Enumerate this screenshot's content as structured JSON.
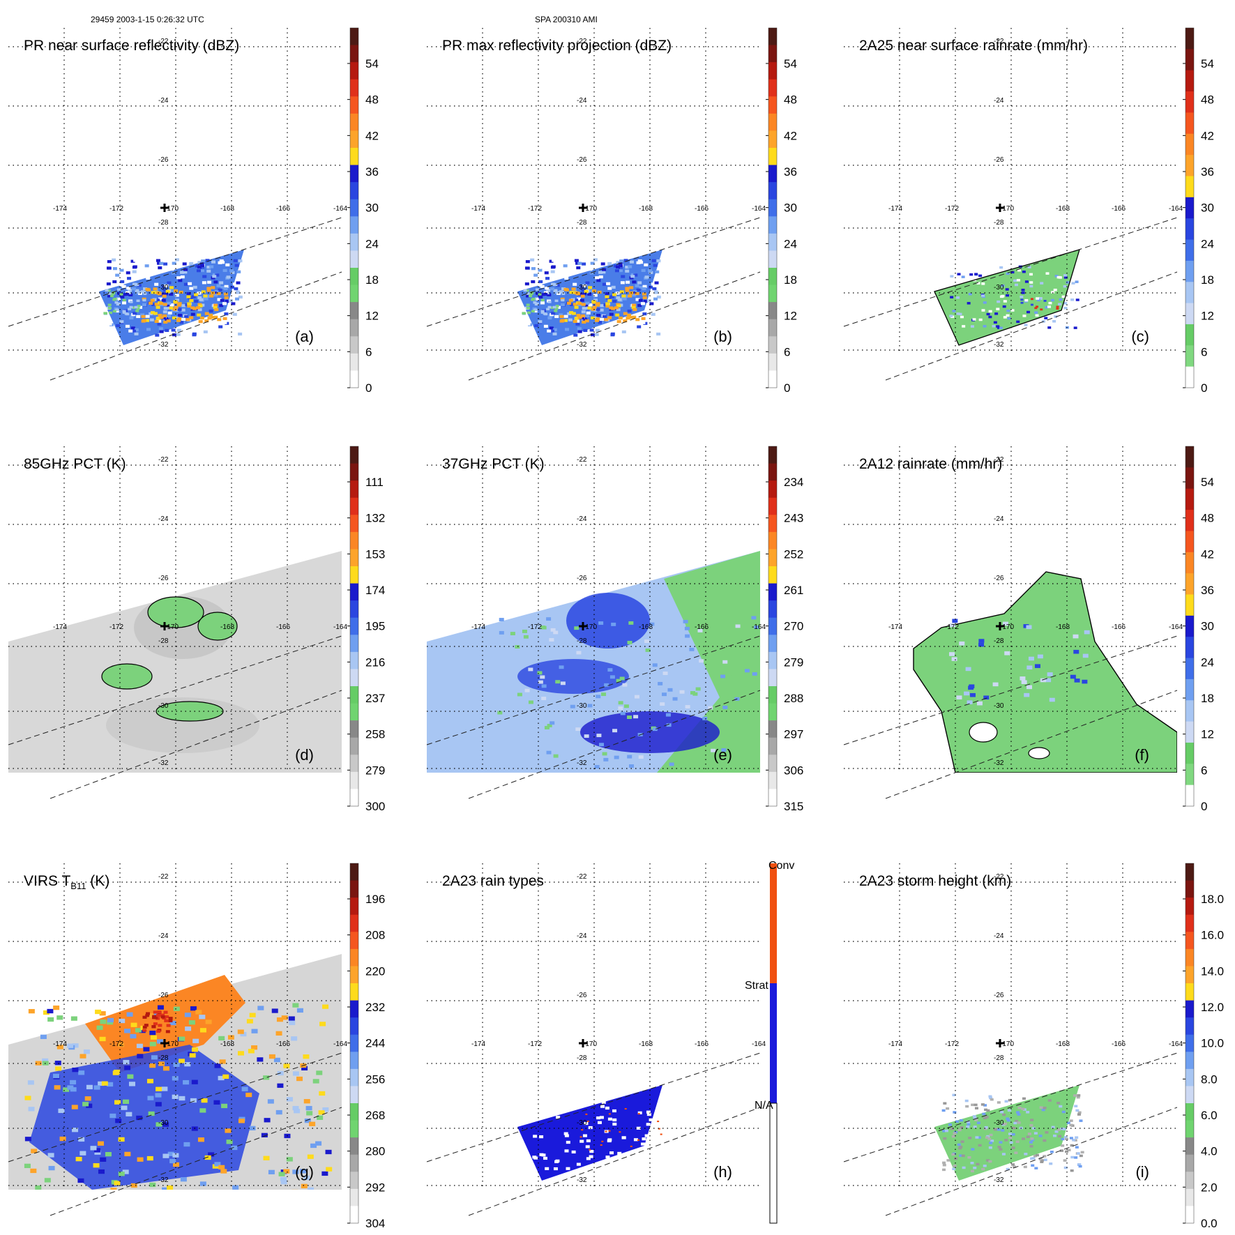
{
  "header": {
    "left": "29459 2003-1-15 0:26:32 UTC",
    "center": "SPA 200310 AMI"
  },
  "map": {
    "lon_labels": [
      "-174",
      "-172",
      "-170",
      "-168",
      "-166",
      "-164"
    ],
    "lat_labels": [
      "-22",
      "-24",
      "-26",
      "-28",
      "-30",
      "-32"
    ]
  },
  "panels": [
    {
      "id": "a",
      "title": "PR near surface reflectivity (dBZ)",
      "letter": "(a)",
      "field": "pr_swath",
      "colorbar": {
        "scheme": "dbz",
        "ticks": [
          "54",
          "48",
          "42",
          "36",
          "30",
          "24",
          "18",
          "12",
          "6",
          "0"
        ]
      }
    },
    {
      "id": "b",
      "title": "PR max reflectivity projection (dBZ)",
      "letter": "(b)",
      "field": "pr_swath",
      "colorbar": {
        "scheme": "dbz",
        "ticks": [
          "54",
          "48",
          "42",
          "36",
          "30",
          "24",
          "18",
          "12",
          "6",
          "0"
        ]
      }
    },
    {
      "id": "c",
      "title": "2A25 near surface rainrate (mm/hr)",
      "letter": "(c)",
      "field": "pr_swath_green",
      "colorbar": {
        "scheme": "rain",
        "ticks": [
          "54",
          "48",
          "42",
          "36",
          "30",
          "24",
          "18",
          "12",
          "6",
          "0"
        ]
      }
    },
    {
      "id": "d",
      "title": "85GHz PCT (K)",
      "letter": "(d)",
      "field": "tmi_gray",
      "colorbar": {
        "scheme": "pct",
        "ticks": [
          "111",
          "132",
          "153",
          "174",
          "195",
          "216",
          "237",
          "258",
          "279",
          "300"
        ]
      }
    },
    {
      "id": "e",
      "title": "37GHz PCT (K)",
      "letter": "(e)",
      "field": "tmi_blue",
      "colorbar": {
        "scheme": "pct",
        "ticks": [
          "234",
          "243",
          "252",
          "261",
          "270",
          "279",
          "288",
          "297",
          "306",
          "315"
        ]
      }
    },
    {
      "id": "f",
      "title": "2A12 rainrate (mm/hr)",
      "letter": "(f)",
      "field": "tmi_green",
      "colorbar": {
        "scheme": "rain",
        "ticks": [
          "54",
          "48",
          "42",
          "36",
          "30",
          "24",
          "18",
          "12",
          "6",
          "0"
        ]
      }
    },
    {
      "id": "g",
      "title": "VIRS T(K)",
      "title_main": "VIRS T",
      "title_sub": "B11",
      "title_end": " (K)",
      "letter": "(g)",
      "field": "virs",
      "colorbar": {
        "scheme": "pct",
        "ticks": [
          "196",
          "208",
          "220",
          "232",
          "244",
          "256",
          "268",
          "280",
          "292",
          "304"
        ]
      }
    },
    {
      "id": "h",
      "title": "2A23 rain types",
      "letter": "(h)",
      "field": "pr_swath_types",
      "colorbar": {
        "scheme": "types",
        "ticks": [
          "Conv",
          "Strat",
          "N/A"
        ]
      }
    },
    {
      "id": "i",
      "title": "2A23 storm height (km)",
      "letter": "(i)",
      "field": "pr_swath_height",
      "colorbar": {
        "scheme": "height",
        "ticks": [
          "18.0",
          "16.0",
          "14.0",
          "12.0",
          "10.0",
          "8.0",
          "6.0",
          "4.0",
          "2.0",
          "0.0"
        ]
      }
    }
  ],
  "colors": {
    "dbz": [
      "#4d1a14",
      "#7a1510",
      "#b51a10",
      "#e0301a",
      "#f5561f",
      "#fb8624",
      "#fda42a",
      "#fedb1c",
      "#1a1acc",
      "#2a46e0",
      "#3f6ee9",
      "#6f9ff0",
      "#a8c6f3",
      "#cdd9f3",
      "#66cc66",
      "#70d470",
      "#888888",
      "#a8a8a8",
      "#c8c8c8",
      "#e8e8e8",
      "#ffffff"
    ],
    "rain": [
      "#4d1a14",
      "#7a1510",
      "#b51a10",
      "#e0301a",
      "#f5561f",
      "#fb8624",
      "#fda42a",
      "#fedb1c",
      "#1a1acc",
      "#2a46e0",
      "#3f6ee9",
      "#6f9ff0",
      "#a8c6f3",
      "#cdd9f3",
      "#66cc66",
      "#80d880"
    ],
    "types": [
      "#f05010",
      "#1a1adb",
      "#ffffff"
    ],
    "swath_green": "#7cd27c",
    "swath_blue": "#5a8ef0",
    "swath_orange": "#f9a825"
  }
}
